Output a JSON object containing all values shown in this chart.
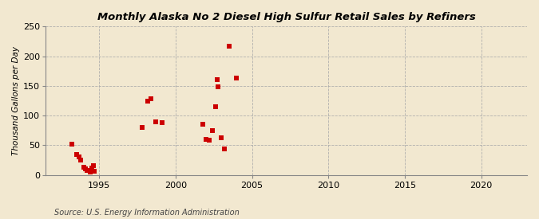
{
  "title": "Monthly Alaska No 2 Diesel High Sulfur Retail Sales by Refiners",
  "ylabel": "Thousand Gallons per Day",
  "source": "Source: U.S. Energy Information Administration",
  "background_color": "#f2e8d0",
  "plot_bg_color": "#f2e8d0",
  "marker_color": "#cc0000",
  "marker_size": 18,
  "xlim": [
    1991.5,
    2023
  ],
  "ylim": [
    0,
    250
  ],
  "xticks": [
    1995,
    2000,
    2005,
    2010,
    2015,
    2020
  ],
  "yticks": [
    0,
    50,
    100,
    150,
    200,
    250
  ],
  "scatter_x": [
    1993.2,
    1993.5,
    1993.7,
    1993.8,
    1994.0,
    1994.1,
    1994.2,
    1994.4,
    1994.5,
    1994.6,
    1994.7,
    1997.8,
    1998.2,
    1998.4,
    1998.7,
    1999.1,
    2001.8,
    2002.0,
    2002.2,
    2002.4,
    2002.6,
    2002.7,
    2002.8,
    2003.0,
    2003.2,
    2003.5,
    2004.0
  ],
  "scatter_y": [
    52,
    35,
    30,
    25,
    13,
    10,
    8,
    5,
    12,
    15,
    6,
    80,
    125,
    128,
    90,
    88,
    86,
    60,
    58,
    75,
    115,
    160,
    148,
    62,
    44,
    217,
    163
  ]
}
